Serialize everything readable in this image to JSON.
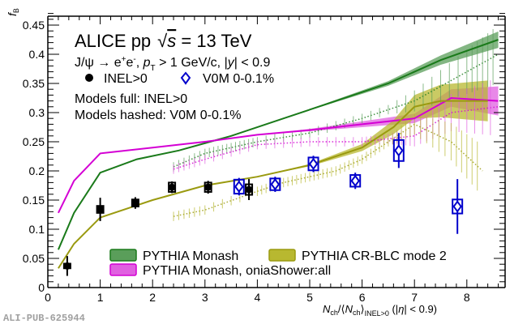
{
  "chart_data": {
    "type": "line",
    "title": "ALICE pp √s = 13 TeV",
    "subtitle": "J/ψ → e⁺e⁻, p_T > 1 GeV/c, |y| < 0.9",
    "notes": [
      "Models full: INEL>0",
      "Models hashed: V0M 0-0.1%"
    ],
    "xlabel": "N_ch/⟨N_ch⟩_INEL>0 (|η| < 0.9)",
    "ylabel": "f_B",
    "xlim": [
      0,
      8.6
    ],
    "ylim": [
      0,
      0.47
    ],
    "xticks": [
      "0",
      "1",
      "2",
      "3",
      "4",
      "5",
      "6",
      "7",
      "8"
    ],
    "yticks": [
      "0",
      "0.05",
      "0.1",
      "0.15",
      "0.2",
      "0.25",
      "0.3",
      "0.35",
      "0.4",
      "0.45"
    ],
    "grid": false,
    "data_series": [
      {
        "name": "INEL>0",
        "marker": "circle",
        "color": "#000000",
        "x": [
          0.37,
          1.0,
          1.67,
          2.37,
          3.06,
          3.84
        ],
        "y": [
          0.037,
          0.134,
          0.145,
          0.172,
          0.172,
          0.168
        ],
        "stat_err": [
          0.017,
          0.02,
          0.01,
          0.01,
          0.011,
          0.018
        ],
        "syst_err": [
          0.004,
          0.006,
          0.006,
          0.008,
          0.008,
          0.009
        ]
      },
      {
        "name": "V0M 0-0.1%",
        "marker": "open-diamond",
        "color": "#0000cc",
        "x": [
          3.65,
          4.34,
          5.07,
          5.87,
          6.7,
          7.82
        ],
        "y": [
          0.173,
          0.177,
          0.212,
          0.183,
          0.235,
          0.139
        ],
        "stat_err": [
          0.015,
          0.013,
          0.014,
          0.014,
          0.03,
          0.047
        ],
        "syst_err": [
          0.012,
          0.01,
          0.011,
          0.01,
          0.018,
          0.012
        ]
      }
    ],
    "models": [
      {
        "name": "PYTHIA Monash",
        "color": "#1a7a1a",
        "fill": "#5a9e5a",
        "full": {
          "x": [
            0.2,
            0.5,
            1,
            1.7,
            2.5,
            3.5,
            4.5,
            5.5,
            6.5,
            7.5,
            8.6
          ],
          "y": [
            0.065,
            0.128,
            0.197,
            0.22,
            0.235,
            0.26,
            0.29,
            0.32,
            0.35,
            0.39,
            0.425
          ],
          "band": [
            0,
            0,
            0,
            0,
            0,
            0,
            0,
            0.002,
            0.004,
            0.008,
            0.014
          ]
        },
        "hashed": {
          "x": [
            2.4,
            3,
            3.5,
            4,
            5,
            6,
            7,
            8,
            8.6
          ],
          "y": [
            0.207,
            0.23,
            0.24,
            0.25,
            0.265,
            0.29,
            0.32,
            0.37,
            0.4
          ]
        }
      },
      {
        "name": "PYTHIA Monash, oniaShower:all",
        "color": "#d400d4",
        "fill": "#e060e0",
        "full": {
          "x": [
            0.2,
            0.5,
            1,
            2,
            3,
            4,
            5,
            6,
            7,
            7.7,
            8.6
          ],
          "y": [
            0.128,
            0.183,
            0.23,
            0.24,
            0.25,
            0.262,
            0.27,
            0.28,
            0.29,
            0.325,
            0.32
          ],
          "band": [
            0,
            0,
            0,
            0,
            0,
            0,
            0.002,
            0.005,
            0.008,
            0.015,
            0.025
          ]
        },
        "hashed": {
          "x": [
            2.4,
            3,
            4,
            5,
            6,
            6.5,
            7,
            7.7,
            8.6
          ],
          "y": [
            0.203,
            0.22,
            0.245,
            0.25,
            0.25,
            0.255,
            0.26,
            0.3,
            0.31
          ]
        }
      },
      {
        "name": "PYTHIA CR-BLC mode 2",
        "color": "#9a9a10",
        "fill": "#b8b830",
        "full": {
          "x": [
            0.2,
            0.5,
            1,
            2,
            3,
            4,
            5,
            6,
            6.6,
            7,
            7.5,
            8.4
          ],
          "y": [
            0.033,
            0.075,
            0.12,
            0.15,
            0.175,
            0.19,
            0.21,
            0.24,
            0.275,
            0.31,
            0.32,
            0.32
          ],
          "band": [
            0,
            0,
            0,
            0,
            0,
            0,
            0.002,
            0.006,
            0.012,
            0.02,
            0.028,
            0.035
          ]
        },
        "hashed": {
          "x": [
            2.4,
            3,
            4,
            4.5,
            5,
            5.5,
            6,
            6.5,
            7,
            7.7,
            8.3
          ],
          "y": [
            0.122,
            0.133,
            0.165,
            0.18,
            0.19,
            0.2,
            0.22,
            0.25,
            0.28,
            0.25,
            0.2
          ]
        }
      }
    ]
  },
  "legend_top": [
    {
      "label": "INEL>0",
      "marker": "filled-circle"
    },
    {
      "label": "V0M 0-0.1%",
      "marker": "open-diamond"
    }
  ],
  "legend_bottom": [
    {
      "label": "PYTHIA Monash"
    },
    {
      "label": "PYTHIA CR-BLC mode 2"
    },
    {
      "label": "PYTHIA Monash, oniaShower:all"
    }
  ],
  "text": {
    "title_main": "ALICE pp",
    "title_sqrt": "√",
    "title_s": "s",
    "title_energy": " = 13 TeV",
    "subtitle_a": "J/ψ → e",
    "subtitle_plus": "+",
    "subtitle_e": "e",
    "subtitle_minus": "-",
    "subtitle_b": ", ",
    "subtitle_p": "p",
    "subtitle_T": "T",
    "subtitle_c": " > 1 GeV/c, |",
    "subtitle_y": "y",
    "subtitle_d": "| < 0.9",
    "note1": "Models full: INEL>0",
    "note2": "Models hashed: V0M 0-0.1%",
    "ylabel_f": "f",
    "ylabel_B": "B",
    "xlabel_N1": "N",
    "xlabel_ch1": "ch",
    "xlabel_mid": "/⟨",
    "xlabel_N2": "N",
    "xlabel_ch2": "ch",
    "xlabel_close": "⟩",
    "xlabel_sub": "INEL>0",
    "xlabel_eta_open": " (|",
    "xlabel_eta": "η",
    "xlabel_eta_close": "| < 0.9)",
    "watermark": "ALI-PUB-625944"
  }
}
